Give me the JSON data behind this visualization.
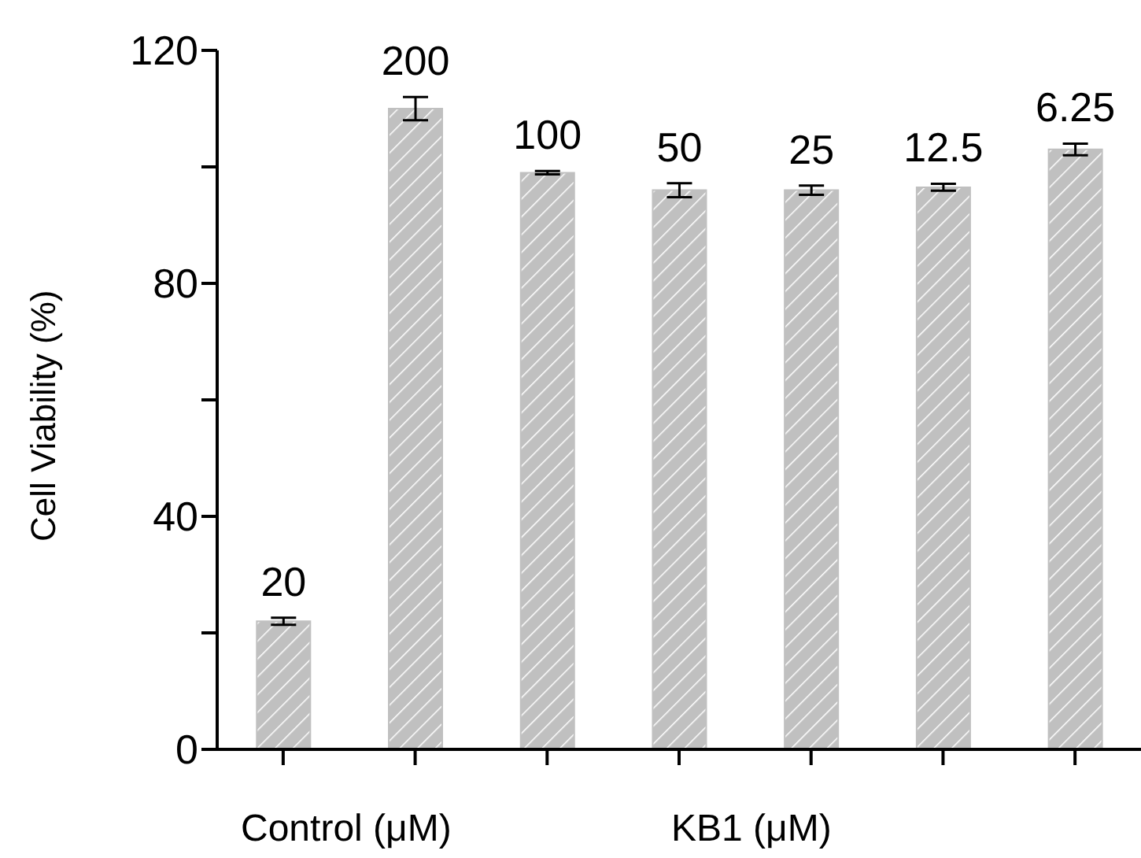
{
  "chart_data": {
    "type": "bar",
    "ylabel": "Cell Viability (%)",
    "categories": [
      "20",
      "200",
      "100",
      "50",
      "25",
      "12.5",
      "6.25"
    ],
    "values": [
      22,
      110,
      99,
      96,
      96,
      96.5,
      103
    ],
    "errors": [
      0.6,
      2,
      0.3,
      1.2,
      0.8,
      0.6,
      1
    ],
    "color": "#c0c0c0",
    "ylim": [
      0,
      120
    ],
    "yticks": [
      0,
      {
        "value": 20,
        "label": null
      },
      40,
      {
        "value": 60,
        "label": null
      },
      80,
      {
        "value": 100,
        "label": null
      },
      120
    ],
    "grid": false,
    "legend": false,
    "annotations": [
      "Control (μM)",
      "KB1 (μM)"
    ]
  }
}
